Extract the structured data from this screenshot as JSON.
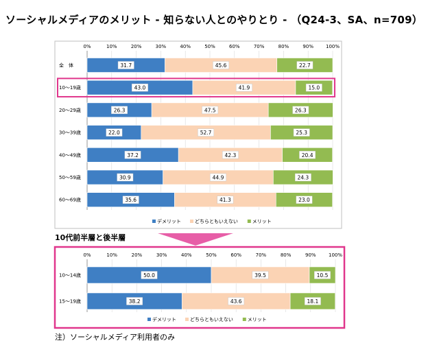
{
  "title": "ソーシャルメディアのメリット - 知らない人とのやりとり - （Q24-3、SA、n=709）",
  "subtitle": "10代前半層と後半層",
  "footnote": "注）ソーシャルメディア利用者のみ",
  "colors": {
    "series": [
      "#3f7fc4",
      "#fbd3b4",
      "#93bb51"
    ],
    "highlight": "#e0368c",
    "arrow": "#e75ea7"
  },
  "chart_data": [
    {
      "type": "bar",
      "orientation": "horizontal",
      "stacked": true,
      "xlim": [
        0,
        100
      ],
      "ticks": [
        "0%",
        "10%",
        "20%",
        "30%",
        "40%",
        "50%",
        "60%",
        "70%",
        "80%",
        "90%",
        "100%"
      ],
      "categories": [
        "全　体",
        "10～19歳",
        "20～29歳",
        "30～39歳",
        "40～49歳",
        "50～59歳",
        "60～69歳"
      ],
      "series": [
        {
          "name": "デメリット",
          "values": [
            31.7,
            43.0,
            26.3,
            22.0,
            37.2,
            30.9,
            35.6
          ]
        },
        {
          "name": "どちらともいえない",
          "values": [
            45.6,
            41.9,
            47.5,
            52.7,
            42.3,
            44.9,
            41.3
          ]
        },
        {
          "name": "メリット",
          "values": [
            22.7,
            15.0,
            26.3,
            25.3,
            20.4,
            24.3,
            23.0
          ]
        }
      ],
      "highlight_category": "10～19歳",
      "legend": "bottom"
    },
    {
      "type": "bar",
      "orientation": "horizontal",
      "stacked": true,
      "xlim": [
        0,
        100
      ],
      "ticks": [
        "0%",
        "10%",
        "20%",
        "30%",
        "40%",
        "50%",
        "60%",
        "70%",
        "80%",
        "90%",
        "100%"
      ],
      "categories": [
        "10～14歳",
        "15～19歳"
      ],
      "series": [
        {
          "name": "デメリット",
          "values": [
            50.0,
            38.2
          ]
        },
        {
          "name": "どちらともいえない",
          "values": [
            39.5,
            43.6
          ]
        },
        {
          "name": "メリット",
          "values": [
            10.5,
            18.1
          ]
        }
      ],
      "legend": "bottom"
    }
  ]
}
